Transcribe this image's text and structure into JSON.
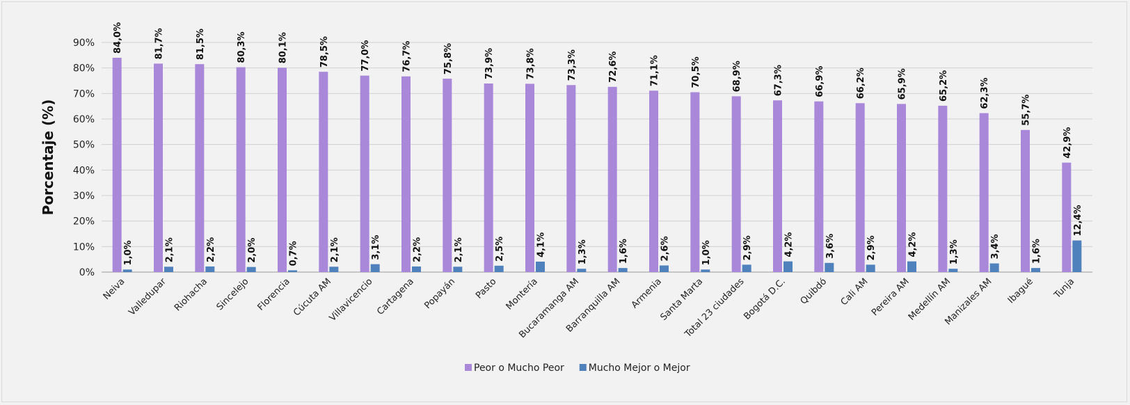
{
  "chart_data": {
    "type": "bar",
    "ylabel": "Porcentaje (%)",
    "xlabel": "",
    "title": "",
    "ylim": [
      0,
      90
    ],
    "yticks": [
      "0%",
      "10%",
      "20%",
      "30%",
      "40%",
      "50%",
      "60%",
      "70%",
      "80%",
      "90%"
    ],
    "grid": true,
    "legend_position": "bottom",
    "categories": [
      "Neiva",
      "Valledupar",
      "Riohacha",
      "Sincelejo",
      "Florencia",
      "Cúcuta AM",
      "Villavicencio",
      "Cartagena",
      "Popayán",
      "Pasto",
      "Montería",
      "Bucaramanga AM",
      "Barranquilla AM",
      "Armenia",
      "Santa Marta",
      "Total 23 ciudades",
      "Bogotá D.C.",
      "Quibdó",
      "Cali AM",
      "Pereira AM",
      "Medellín AM",
      "Manizales AM",
      "Ibagué",
      "Tunja"
    ],
    "series": [
      {
        "name": "Peor o Mucho Peor",
        "color": "#a987d9",
        "values": [
          84.0,
          81.7,
          81.5,
          80.3,
          80.1,
          78.5,
          77.0,
          76.7,
          75.8,
          73.9,
          73.8,
          73.3,
          72.6,
          71.1,
          70.5,
          68.9,
          67.3,
          66.9,
          66.2,
          65.9,
          65.2,
          62.3,
          55.7,
          42.9
        ],
        "labels": [
          "84,0%",
          "81,7%",
          "81,5%",
          "80,3%",
          "80,1%",
          "78,5%",
          "77,0%",
          "76,7%",
          "75,8%",
          "73,9%",
          "73,8%",
          "73,3%",
          "72,6%",
          "71,1%",
          "70,5%",
          "68,9%",
          "67,3%",
          "66,9%",
          "66,2%",
          "65,9%",
          "65,2%",
          "62,3%",
          "55,7%",
          "42,9%"
        ]
      },
      {
        "name": "Mucho Mejor o Mejor",
        "color": "#4f81bd",
        "values": [
          1.0,
          2.1,
          2.2,
          2.0,
          0.7,
          2.1,
          3.1,
          2.2,
          2.1,
          2.5,
          4.1,
          1.3,
          1.6,
          2.6,
          1.0,
          2.9,
          4.2,
          3.6,
          2.9,
          4.2,
          1.3,
          3.4,
          1.6,
          12.4
        ],
        "labels": [
          "1,0%",
          "2,1%",
          "2,2%",
          "2,0%",
          "0,7%",
          "2,1%",
          "3,1%",
          "2,2%",
          "2,1%",
          "2,5%",
          "4,1%",
          "1,3%",
          "1,6%",
          "2,6%",
          "1,0%",
          "2,9%",
          "4,2%",
          "3,6%",
          "2,9%",
          "4,2%",
          "1,3%",
          "3,4%",
          "1,6%",
          "12,4%"
        ]
      }
    ]
  }
}
